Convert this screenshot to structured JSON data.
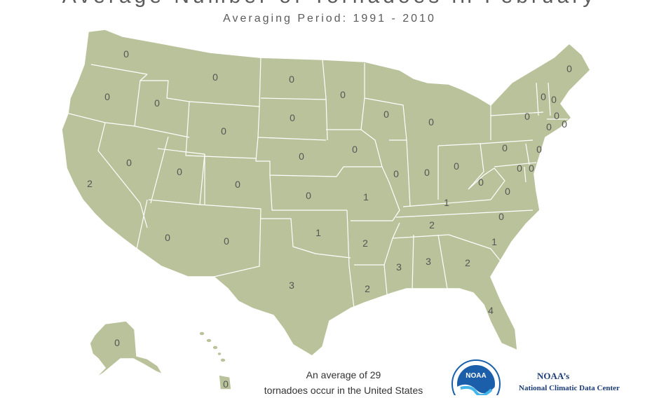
{
  "title": "Average Number of Tornadoes in February",
  "subtitle": "Averaging Period:  1991 - 2010",
  "summary": {
    "line1": "An average of 29",
    "line2": "tornadoes occur in the United States"
  },
  "organization": {
    "logo_text": "NOAA",
    "name": "NOAA’s",
    "subname": "National Climatic Data Center"
  },
  "colors": {
    "land": "#b9c29a",
    "borders": "#ffffff",
    "logo_blue": "#1b5faa"
  },
  "state_values": {
    "WA": "0",
    "OR": "0",
    "CA": "2",
    "NV": "0",
    "ID": "0",
    "MT": "0",
    "WY": "0",
    "UT": "0",
    "AZ": "0",
    "CO": "0",
    "NM": "0",
    "ND": "0",
    "SD": "0",
    "NE": "0",
    "KS": "0",
    "OK": "1",
    "TX": "3",
    "MN": "0",
    "IA": "0",
    "MO": "1",
    "AR": "2",
    "LA": "2",
    "WI": "0",
    "IL": "0",
    "MI": "0",
    "IN": "0",
    "OH": "0",
    "KY": "1",
    "TN": "2",
    "MS": "3",
    "AL": "3",
    "GA": "2",
    "FL": "4",
    "SC": "1",
    "NC": "0",
    "VA": "0",
    "WV": "0",
    "PA": "0",
    "NY": "0",
    "VT": "0",
    "NH": "0",
    "ME": "0",
    "MA": "0",
    "CT": "0",
    "RI": "0",
    "NJ": "0",
    "DE": "0",
    "MD": "0",
    "AK": "0",
    "HI": "0"
  }
}
